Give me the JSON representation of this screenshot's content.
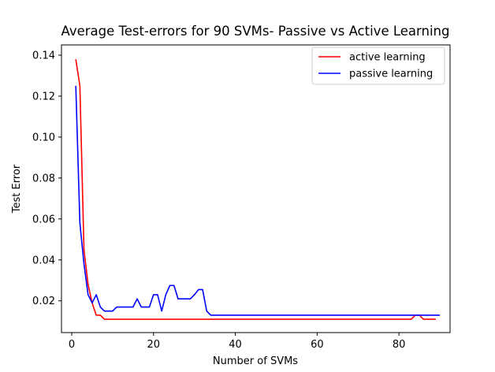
{
  "chart_data": {
    "type": "line",
    "title": "Average Test-errors for 90 SVMs- Passive vs Active Learning",
    "xlabel": "Number of SVMs",
    "ylabel": "Test Error",
    "xlim": [
      -2.5,
      92.5
    ],
    "ylim": [
      0.0045,
      0.145
    ],
    "xticks": [
      0,
      20,
      40,
      60,
      80
    ],
    "xtick_labels": [
      "0",
      "20",
      "40",
      "60",
      "80"
    ],
    "yticks": [
      0.02,
      0.04,
      0.06,
      0.08,
      0.1,
      0.12,
      0.14
    ],
    "ytick_labels": [
      "0.02",
      "0.04",
      "0.06",
      "0.08",
      "0.10",
      "0.12",
      "0.14"
    ],
    "grid": false,
    "legend_position": "top-right",
    "series": [
      {
        "name": "active learning",
        "color": "#ff0000",
        "x": [
          1,
          2,
          3,
          4,
          5,
          6,
          7,
          8,
          9,
          10,
          11,
          12,
          13,
          14,
          15,
          16,
          17,
          18,
          19,
          20,
          21,
          22,
          23,
          24,
          25,
          26,
          27,
          28,
          29,
          30,
          31,
          32,
          33,
          34,
          35,
          36,
          37,
          38,
          39,
          40,
          41,
          42,
          43,
          44,
          45,
          46,
          47,
          48,
          49,
          50,
          51,
          52,
          53,
          54,
          55,
          56,
          57,
          58,
          59,
          60,
          61,
          62,
          63,
          64,
          65,
          66,
          67,
          68,
          69,
          70,
          71,
          72,
          73,
          74,
          75,
          76,
          77,
          78,
          79,
          80,
          81,
          82,
          83,
          84,
          85,
          86,
          87,
          88,
          89
        ],
        "y": [
          0.138,
          0.125,
          0.045,
          0.028,
          0.019,
          0.013,
          0.013,
          0.011,
          0.011,
          0.011,
          0.011,
          0.011,
          0.011,
          0.011,
          0.011,
          0.011,
          0.011,
          0.011,
          0.011,
          0.011,
          0.011,
          0.011,
          0.011,
          0.011,
          0.011,
          0.011,
          0.011,
          0.011,
          0.011,
          0.011,
          0.011,
          0.011,
          0.011,
          0.011,
          0.011,
          0.011,
          0.011,
          0.011,
          0.011,
          0.011,
          0.011,
          0.011,
          0.011,
          0.011,
          0.011,
          0.011,
          0.011,
          0.011,
          0.011,
          0.011,
          0.011,
          0.011,
          0.011,
          0.011,
          0.011,
          0.011,
          0.011,
          0.011,
          0.011,
          0.011,
          0.011,
          0.011,
          0.011,
          0.011,
          0.011,
          0.011,
          0.011,
          0.011,
          0.011,
          0.011,
          0.011,
          0.011,
          0.011,
          0.011,
          0.011,
          0.011,
          0.011,
          0.011,
          0.011,
          0.011,
          0.011,
          0.011,
          0.011,
          0.013,
          0.013,
          0.011,
          0.011,
          0.011,
          0.011
        ]
      },
      {
        "name": "passive learning",
        "color": "#0000ff",
        "x": [
          1,
          2,
          3,
          4,
          5,
          6,
          7,
          8,
          9,
          10,
          11,
          12,
          13,
          14,
          15,
          16,
          17,
          18,
          19,
          20,
          21,
          22,
          23,
          24,
          25,
          26,
          27,
          28,
          29,
          30,
          31,
          32,
          33,
          34,
          35,
          36,
          37,
          38,
          39,
          40,
          41,
          42,
          43,
          44,
          45,
          46,
          47,
          48,
          49,
          50,
          51,
          52,
          53,
          54,
          55,
          56,
          57,
          58,
          59,
          60,
          61,
          62,
          63,
          64,
          65,
          66,
          67,
          68,
          69,
          70,
          71,
          72,
          73,
          74,
          75,
          76,
          77,
          78,
          79,
          80,
          81,
          82,
          83,
          84,
          85,
          86,
          87,
          88,
          89,
          90
        ],
        "y": [
          0.125,
          0.058,
          0.038,
          0.023,
          0.019,
          0.023,
          0.017,
          0.015,
          0.015,
          0.015,
          0.017,
          0.017,
          0.017,
          0.017,
          0.017,
          0.021,
          0.017,
          0.017,
          0.017,
          0.023,
          0.023,
          0.015,
          0.023,
          0.0275,
          0.0275,
          0.021,
          0.021,
          0.021,
          0.021,
          0.023,
          0.0255,
          0.0255,
          0.015,
          0.013,
          0.013,
          0.013,
          0.013,
          0.013,
          0.013,
          0.013,
          0.013,
          0.013,
          0.013,
          0.013,
          0.013,
          0.013,
          0.013,
          0.013,
          0.013,
          0.013,
          0.013,
          0.013,
          0.013,
          0.013,
          0.013,
          0.013,
          0.013,
          0.013,
          0.013,
          0.013,
          0.013,
          0.013,
          0.013,
          0.013,
          0.013,
          0.013,
          0.013,
          0.013,
          0.013,
          0.013,
          0.013,
          0.013,
          0.013,
          0.013,
          0.013,
          0.013,
          0.013,
          0.013,
          0.013,
          0.013,
          0.013,
          0.013,
          0.013,
          0.013,
          0.013,
          0.013,
          0.013,
          0.013,
          0.013,
          0.013
        ]
      }
    ]
  }
}
